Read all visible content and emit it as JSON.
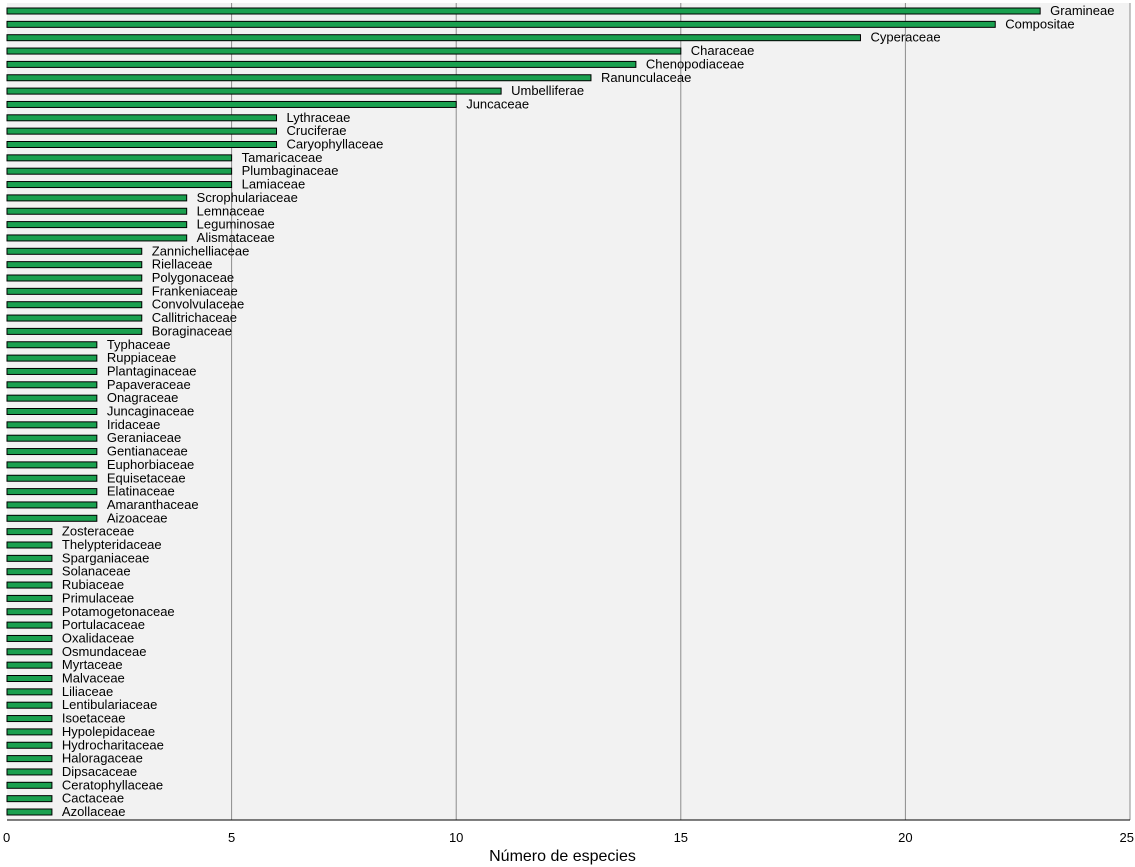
{
  "chart_data": {
    "type": "bar",
    "orientation": "horizontal",
    "xlabel": "Número de especies",
    "ylabel": "",
    "title": "",
    "xlim": [
      0,
      25
    ],
    "xticks": [
      0,
      5,
      10,
      15,
      20,
      25
    ],
    "grid": "vertical",
    "legend": "none",
    "colors": {
      "bar_fill": "#1aa04f",
      "bar_stroke": "#000000",
      "plot_background": "#f2f2f2",
      "grid": "#8c8c8c"
    },
    "categories": [
      "Gramineae",
      "Compositae",
      "Cyperaceae",
      "Characeae",
      "Chenopodiaceae",
      "Ranunculaceae",
      "Umbelliferae",
      "Juncaceae",
      "Lythraceae",
      "Cruciferae",
      "Caryophyllaceae",
      "Tamaricaceae",
      "Plumbaginaceae",
      "Lamiaceae",
      "Scrophulariaceae",
      "Lemnaceae",
      "Leguminosae",
      "Alismataceae",
      "Zannichelliaceae",
      "Riellaceae",
      "Polygonaceae",
      "Frankeniaceae",
      "Convolvulaceae",
      "Callitrichaceae",
      "Boraginaceae",
      "Typhaceae",
      "Ruppiaceae",
      "Plantaginaceae",
      "Papaveraceae",
      "Onagraceae",
      "Juncaginaceae",
      "Iridaceae",
      "Geraniaceae",
      "Gentianaceae",
      "Euphorbiaceae",
      "Equisetaceae",
      "Elatinaceae",
      "Amaranthaceae",
      "Aizoaceae",
      "Zosteraceae",
      "Thelypteridaceae",
      "Sparganiaceae",
      "Solanaceae",
      "Rubiaceae",
      "Primulaceae",
      "Potamogetonaceae",
      "Portulacaceae",
      "Oxalidaceae",
      "Osmundaceae",
      "Myrtaceae",
      "Malvaceae",
      "Liliaceae",
      "Lentibulariaceae",
      "Isoetaceae",
      "Hypolepidaceae",
      "Hydrocharitaceae",
      "Haloragaceae",
      "Dipsacaceae",
      "Ceratophyllaceae",
      "Cactaceae",
      "Azollaceae"
    ],
    "values": [
      23,
      22,
      19,
      15,
      14,
      13,
      11,
      10,
      6,
      6,
      6,
      5,
      5,
      5,
      4,
      4,
      4,
      4,
      3,
      3,
      3,
      3,
      3,
      3,
      3,
      2,
      2,
      2,
      2,
      2,
      2,
      2,
      2,
      2,
      2,
      2,
      2,
      2,
      2,
      1,
      1,
      1,
      1,
      1,
      1,
      1,
      1,
      1,
      1,
      1,
      1,
      1,
      1,
      1,
      1,
      1,
      1,
      1,
      1,
      1,
      1
    ]
  }
}
